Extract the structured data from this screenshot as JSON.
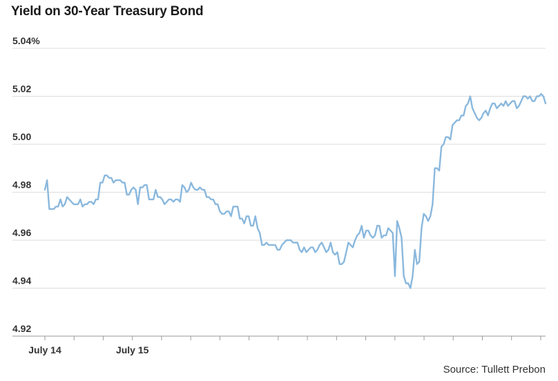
{
  "chart_data": {
    "type": "line",
    "title": "Yield on 30-Year Treasury Bond",
    "y_ticks": [
      "5.04%",
      "5.02",
      "5.00",
      "4.98",
      "4.96",
      "4.94",
      "4.92"
    ],
    "y_tick_values": [
      5.04,
      5.02,
      5.0,
      4.98,
      4.96,
      4.94,
      4.92
    ],
    "ylim": [
      4.92,
      5.04
    ],
    "x_labels": [
      "July 14",
      "July 15"
    ],
    "x_label_positions": [
      0,
      36
    ],
    "x_tick_positions": [
      0,
      12,
      24,
      36,
      48,
      60,
      72,
      84,
      96,
      108,
      120,
      132,
      144,
      156,
      168,
      180,
      192,
      204
    ],
    "xlim": [
      0,
      206
    ],
    "grid": true,
    "line_color": "#8ab8dd",
    "series": [
      {
        "values": [
          4.981,
          4.985,
          4.973,
          4.973,
          4.973,
          4.974,
          4.974,
          4.977,
          4.974,
          4.975,
          4.978,
          4.977,
          4.976,
          4.975,
          4.975,
          4.975,
          4.977,
          4.974,
          4.975,
          4.975,
          4.976,
          4.976,
          4.975,
          4.977,
          4.977,
          4.984,
          4.984,
          4.987,
          4.987,
          4.986,
          4.986,
          4.984,
          4.985,
          4.985,
          4.985,
          4.984,
          4.984,
          4.979,
          4.979,
          4.981,
          4.982,
          4.981,
          4.975,
          4.982,
          4.982,
          4.983,
          4.983,
          4.977,
          4.977,
          4.977,
          4.981,
          4.978,
          4.978,
          4.977,
          4.975,
          4.976,
          4.977,
          4.977,
          4.976,
          4.977,
          4.977,
          4.976,
          4.983,
          4.982,
          4.98,
          4.981,
          4.984,
          4.982,
          4.981,
          4.981,
          4.982,
          4.981,
          4.981,
          4.978,
          4.978,
          4.977,
          4.977,
          4.975,
          4.975,
          4.972,
          4.971,
          4.971,
          4.972,
          4.972,
          4.97,
          4.974,
          4.974,
          4.974,
          4.969,
          4.969,
          4.967,
          4.97,
          4.97,
          4.966,
          4.966,
          4.97,
          4.965,
          4.963,
          4.958,
          4.958,
          4.959,
          4.958,
          4.958,
          4.958,
          4.958,
          4.956,
          4.956,
          4.958,
          4.959,
          4.96,
          4.96,
          4.96,
          4.959,
          4.959,
          4.959,
          4.956,
          4.955,
          4.957,
          4.955,
          4.956,
          4.957,
          4.957,
          4.955,
          4.956,
          4.958,
          4.959,
          4.957,
          4.955,
          4.956,
          4.959,
          4.955,
          4.954,
          4.955,
          4.95,
          4.95,
          4.951,
          4.955,
          4.959,
          4.958,
          4.957,
          4.96,
          4.962,
          4.963,
          4.966,
          4.961,
          4.964,
          4.964,
          4.962,
          4.961,
          4.962,
          4.966,
          4.966,
          4.961,
          4.962,
          4.962,
          4.965,
          4.964,
          4.963,
          4.945,
          4.968,
          4.965,
          4.961,
          4.945,
          4.942,
          4.942,
          4.94,
          4.945,
          4.956,
          4.95,
          4.951,
          4.965,
          4.971,
          4.97,
          4.968,
          4.97,
          4.975,
          4.99,
          4.99,
          4.989,
          4.999,
          5.0,
          5.003,
          5.003,
          5.002,
          5.008,
          5.009,
          5.01,
          5.01,
          5.012,
          5.012,
          5.016,
          5.017,
          5.02,
          5.015,
          5.013,
          5.011,
          5.01,
          5.011,
          5.013,
          5.014,
          5.012,
          5.015,
          5.017,
          5.017,
          5.015,
          5.016,
          5.017,
          5.016,
          5.018,
          5.016,
          5.017,
          5.018,
          5.018,
          5.015,
          5.016,
          5.018,
          5.02,
          5.02,
          5.019,
          5.02,
          5.018,
          5.018,
          5.02,
          5.02,
          5.021,
          5.02,
          5.017
        ]
      }
    ]
  },
  "source": "Source: Tullett Prebon"
}
